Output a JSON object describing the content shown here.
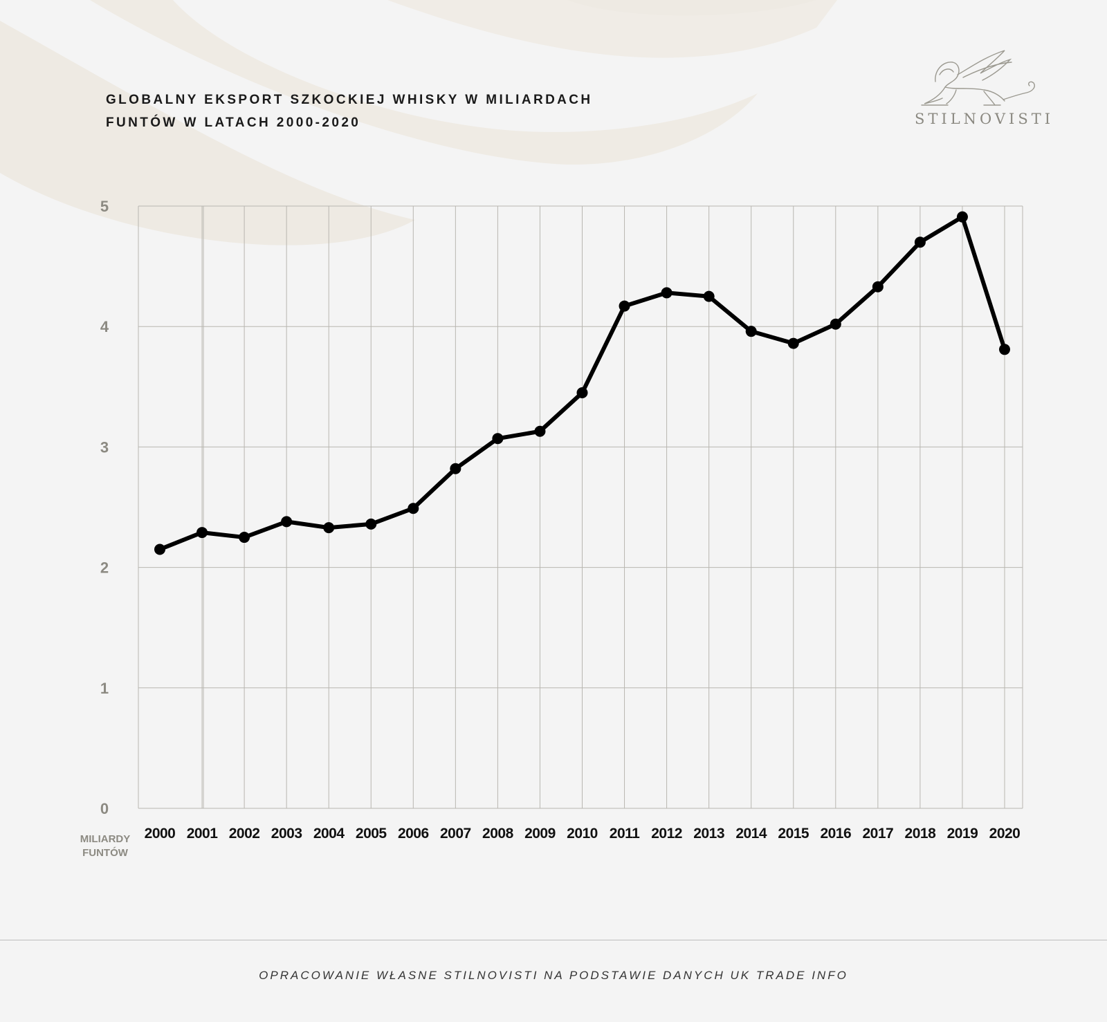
{
  "header": {
    "title_line1": "GLOBALNY EKSPORT SZKOCKIEJ WHISKY W MILIARDACH",
    "title_line2": "FUNTÓW W LATACH 2000-2020"
  },
  "brand": {
    "logo_icon": "winged-lion-icon",
    "name": "STILNOVISTI"
  },
  "footer": {
    "source": "OPRACOWANIE WŁASNE STILNOVISTI NA PODSTAWIE DANYCH UK TRADE INFO"
  },
  "colors": {
    "background": "#f4f4f4",
    "line": "#000000",
    "grid": "#b8b6b0",
    "y_tick_label": "#8c8a82",
    "x_tick_label": "#111111",
    "swoosh": "#eeeae3"
  },
  "chart_data": {
    "type": "line",
    "title": "GLOBALNY EKSPORT SZKOCKIEJ WHISKY W MILIARDACH FUNTÓW W LATACH 2000-2020",
    "ylabel": "MILIARDY FUNTÓW",
    "xlabel": "",
    "ylim": [
      0,
      5
    ],
    "yticks": [
      0,
      1,
      2,
      3,
      4,
      5
    ],
    "grid": true,
    "categories": [
      "2000",
      "2001",
      "2002",
      "2003",
      "2004",
      "2005",
      "2006",
      "2007",
      "2008",
      "2009",
      "2010",
      "2011",
      "2012",
      "2013",
      "2014",
      "2015",
      "2016",
      "2017",
      "2018",
      "2019",
      "2020"
    ],
    "series": [
      {
        "values": [
          2.15,
          2.29,
          2.25,
          2.38,
          2.33,
          2.36,
          2.49,
          2.82,
          3.07,
          3.13,
          3.45,
          4.17,
          4.28,
          4.25,
          3.96,
          3.86,
          4.02,
          4.33,
          4.7,
          4.91,
          3.81
        ]
      }
    ]
  }
}
